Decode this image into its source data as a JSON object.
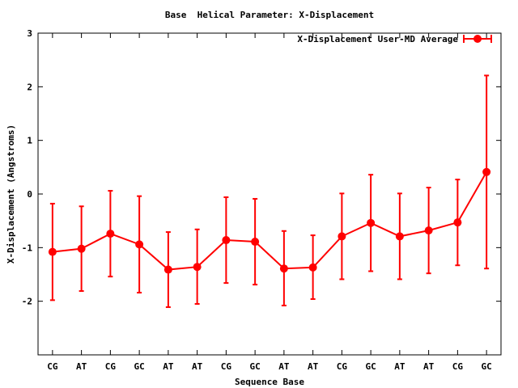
{
  "chart_data": {
    "type": "line",
    "title": "Base  Helical Parameter: X-Displacement",
    "xlabel": "Sequence Base",
    "ylabel": "X-Displacement (Angstroms)",
    "ylim": [
      -3,
      3
    ],
    "yticks": [
      3,
      2,
      1,
      0,
      -1,
      -2
    ],
    "ytick_labels": [
      "3",
      "2",
      "1",
      "0",
      "-1",
      "-2"
    ],
    "categories": [
      "CG",
      "AT",
      "CG",
      "GC",
      "AT",
      "AT",
      "CG",
      "GC",
      "AT",
      "AT",
      "CG",
      "GC",
      "AT",
      "AT",
      "CG",
      "GC"
    ],
    "grid": false,
    "legend_position": "top-right",
    "series": [
      {
        "name": "X-Displacement User-MD Average",
        "color": "#ff0000",
        "values": [
          -1.08,
          -1.02,
          -0.74,
          -0.94,
          -1.41,
          -1.36,
          -0.86,
          -0.89,
          -1.39,
          -1.37,
          -0.79,
          -0.54,
          -0.79,
          -0.68,
          -0.53,
          0.41
        ],
        "err_low": [
          -1.98,
          -1.81,
          -1.54,
          -1.84,
          -2.11,
          -2.05,
          -1.66,
          -1.69,
          -2.08,
          -1.96,
          -1.59,
          -1.44,
          -1.59,
          -1.48,
          -1.33,
          -1.39
        ],
        "err_high": [
          -0.18,
          -0.23,
          0.06,
          -0.04,
          -0.71,
          -0.66,
          -0.06,
          -0.09,
          -0.69,
          -0.77,
          0.01,
          0.36,
          0.01,
          0.12,
          0.27,
          2.21
        ]
      }
    ]
  }
}
